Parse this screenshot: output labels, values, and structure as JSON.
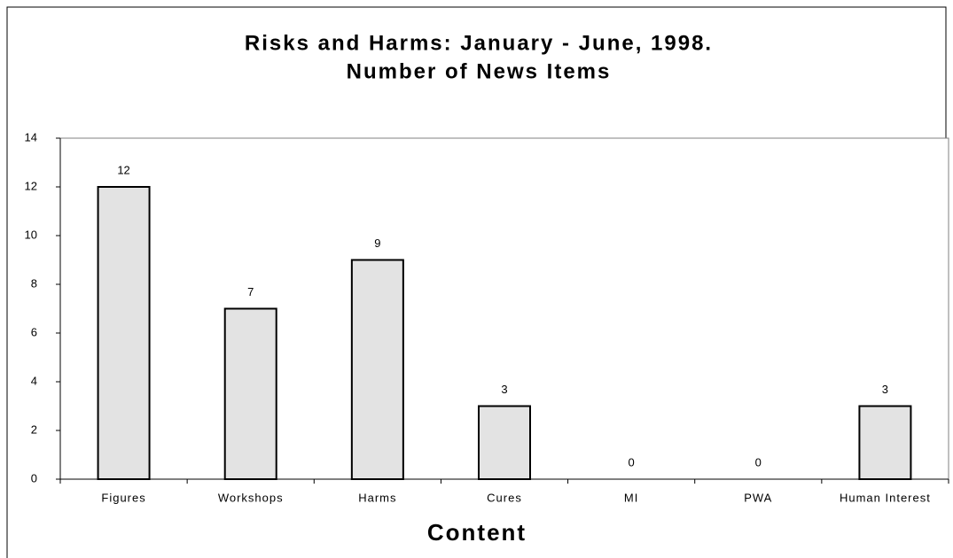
{
  "chart_data": {
    "type": "bar",
    "title": "Risks and Harms: January - June, 1998.",
    "subtitle": "Number of News Items",
    "x_label": "Content",
    "categories": [
      "Figures",
      "Workshops",
      "Harms",
      "Cures",
      "MI",
      "PWA",
      "Human Interest"
    ],
    "values": [
      12,
      7,
      9,
      3,
      0,
      0,
      3
    ],
    "color": "#e3e3e3",
    "ylim": [
      0,
      14
    ],
    "yticks": [
      0,
      2,
      4,
      6,
      8,
      10,
      12,
      14
    ],
    "grid": false
  }
}
